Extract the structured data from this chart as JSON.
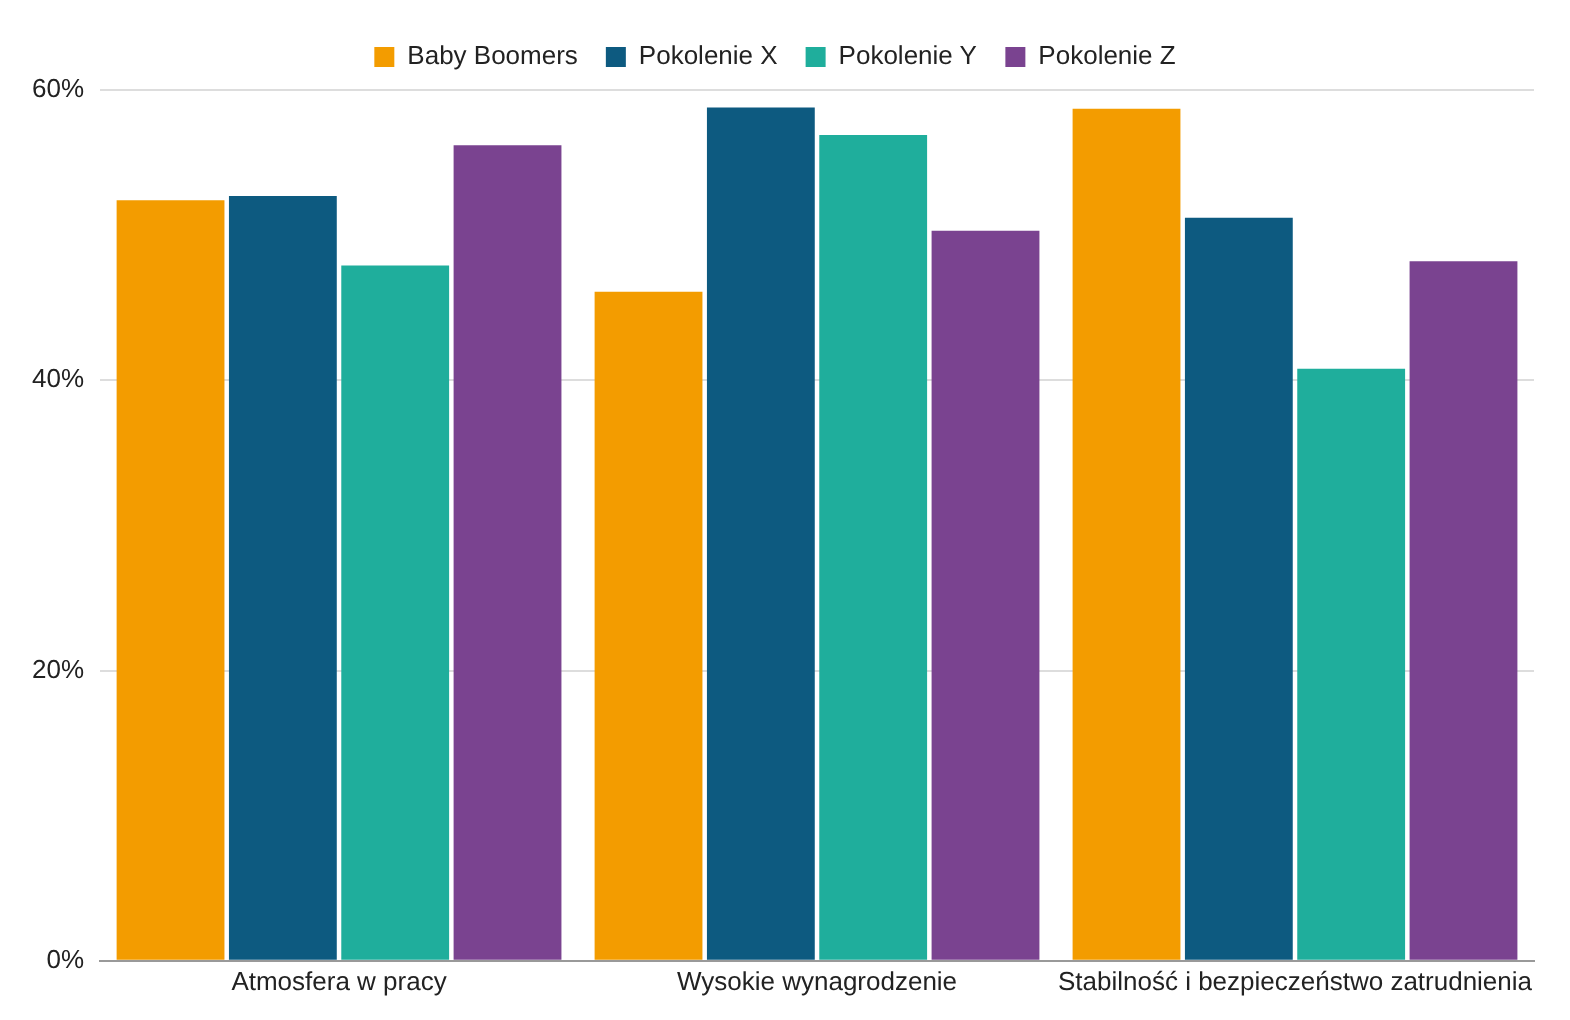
{
  "chart_data": {
    "type": "bar",
    "categories": [
      "Atmosfera w pracy",
      "Wysokie wynagrodzenie",
      "Stabilność i bezpieczeństwo zatrudnienia"
    ],
    "series": [
      {
        "name": "Baby Boomers",
        "color": "#f39c00",
        "values": [
          52.4,
          46.1,
          58.7
        ]
      },
      {
        "name": "Pokolenie X",
        "color": "#0d5a80",
        "values": [
          52.7,
          58.8,
          51.2
        ]
      },
      {
        "name": "Pokolenie Y",
        "color": "#1fae9c",
        "values": [
          47.9,
          56.9,
          40.8
        ]
      },
      {
        "name": "Pokolenie Z",
        "color": "#7a4390",
        "values": [
          56.2,
          50.3,
          48.2
        ]
      }
    ],
    "ylim": [
      0,
      60
    ],
    "yticks": [
      {
        "value": 0,
        "label": "0%"
      },
      {
        "value": 20,
        "label": "20%"
      },
      {
        "value": 40,
        "label": "40%"
      },
      {
        "value": 60,
        "label": "60%"
      }
    ],
    "grid": "y",
    "legend": "top"
  }
}
